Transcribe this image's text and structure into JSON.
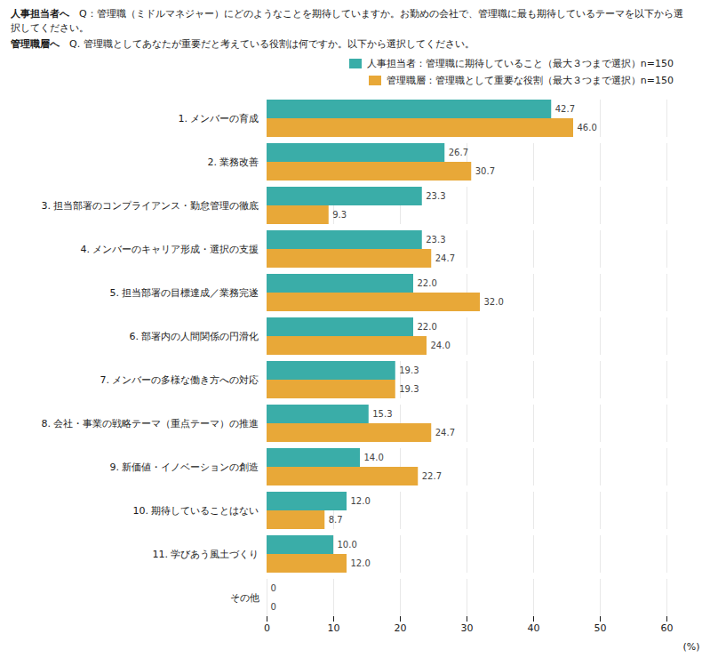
{
  "chart_data": {
    "type": "bar",
    "orientation": "horizontal",
    "title": "人事担当者へ　Q：管理職（ミドルマネジャー）にどのようなことを期待していますか。お勤めの会社で、管理職に最も期待しているテーマを以下から選択してください。",
    "subtitle": "管理職層へ　Q. 管理職としてあなたが重要だと考えている役割は何ですか。以下から選択してください。",
    "xlabel": "(%)",
    "categories": [
      "1. メンバーの育成",
      "2. 業務改善",
      "3. 担当部署のコンプライアンス・勤怠管理の徹底",
      "4. メンバーのキャリア形成・選択の支援",
      "5. 担当部署の目標達成／業務完遂",
      "6. 部署内の人間関係の円滑化",
      "7. メンバーの多様な働き方への対応",
      "8. 会社・事業の戦略テーマ（重点テーマ）の推進",
      "9. 新価値・イノベーションの創造",
      "10. 期待していることはない",
      "11. 学びあう風土づくり",
      "その他"
    ],
    "series": [
      {
        "name": "人事担当者：管理職に期待していること（最大３つまで選択）n=150",
        "color": "#3aada8",
        "values": [
          42.7,
          26.7,
          23.3,
          23.3,
          22.0,
          22.0,
          19.3,
          15.3,
          14.0,
          12.0,
          10.0,
          0
        ],
        "value_labels": [
          "42.7",
          "26.7",
          "23.3",
          "23.3",
          "22.0",
          "22.0",
          "19.3",
          "15.3",
          "14.0",
          "12.0",
          "10.0",
          "0"
        ]
      },
      {
        "name": "管理職層：管理職として重要な役割（最大３つまで選択）n=150",
        "color": "#e8a838",
        "values": [
          46.0,
          30.7,
          9.3,
          24.7,
          32.0,
          24.0,
          19.3,
          24.7,
          22.7,
          8.7,
          12.0,
          0
        ],
        "value_labels": [
          "46.0",
          "30.7",
          "9.3",
          "24.7",
          "32.0",
          "24.0",
          "19.3",
          "24.7",
          "22.7",
          "8.7",
          "12.0",
          "0"
        ]
      }
    ],
    "xlim": [
      0,
      60
    ],
    "xticks": [
      0,
      10,
      20,
      30,
      40,
      50,
      60
    ],
    "grid": true,
    "legend": "upper right",
    "data_labels": true
  }
}
